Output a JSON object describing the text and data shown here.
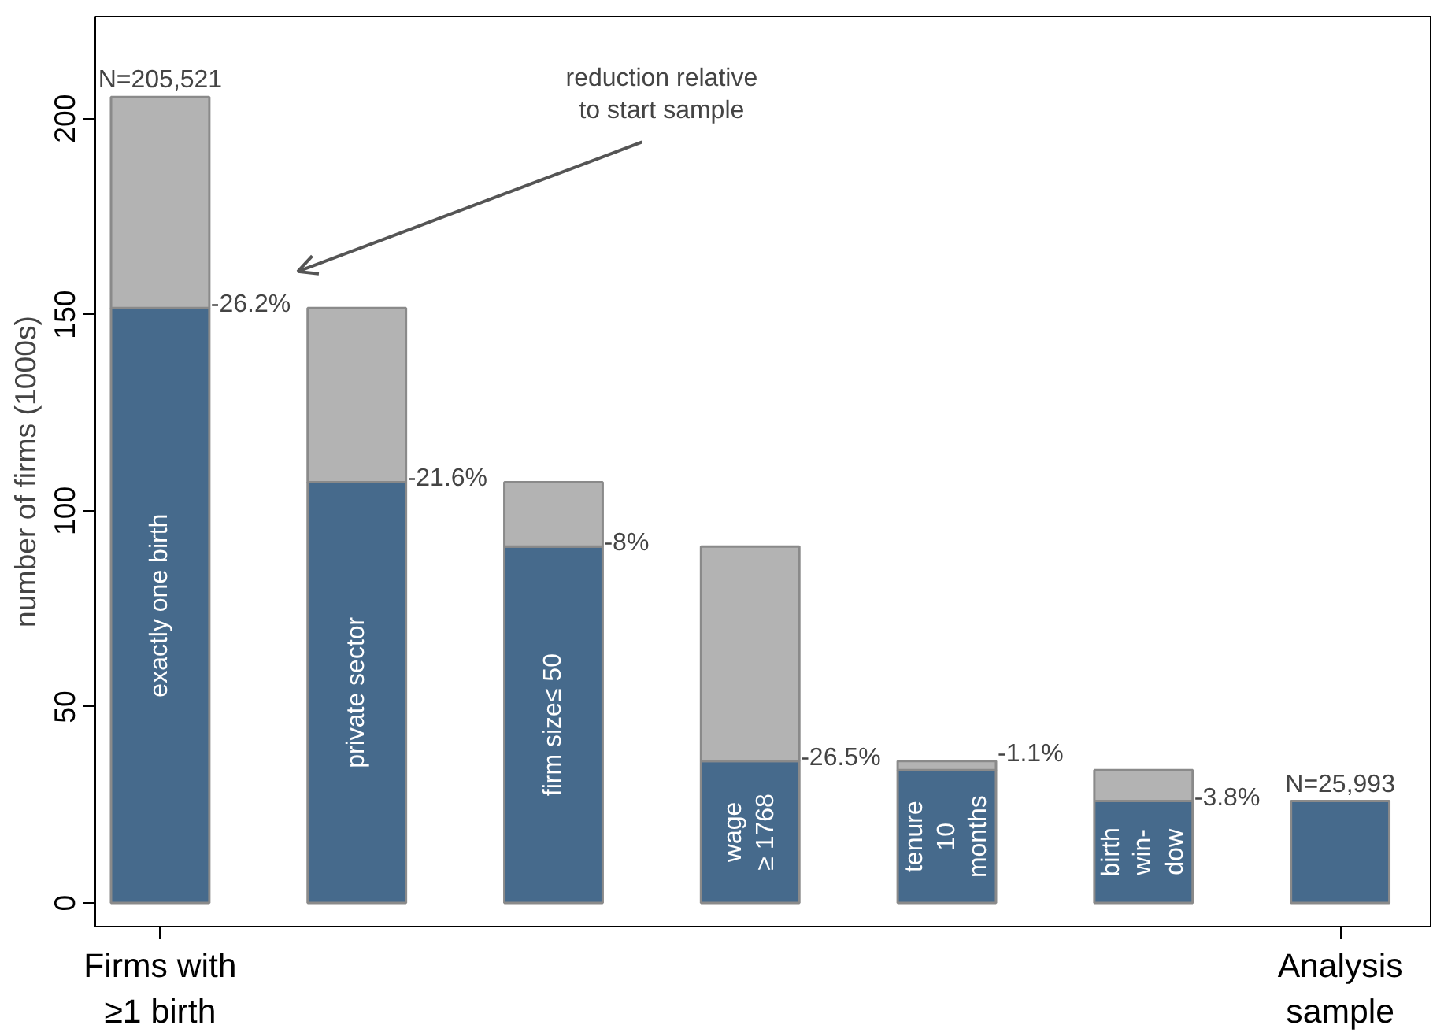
{
  "chart_data": {
    "type": "bar",
    "stacked": true,
    "ylabel": "number of firms (1000s)",
    "categories": [
      "Firms with\n≥1 birth",
      null,
      null,
      null,
      null,
      null,
      "Analysis\nsample"
    ],
    "series": [
      {
        "color": "#466a8c",
        "values": [
          151.7,
          107.3,
          90.9,
          36.2,
          33.9,
          26.0,
          26.0
        ],
        "value_labels": [
          "exactly one birth",
          "private sector",
          "firm size≤ 50",
          "wage\n≥ 1768",
          "tenure\n10\nmonths",
          "birth\nwin-\ndow",
          null
        ]
      },
      {
        "color": "#b3b3b3",
        "values": [
          53.8,
          44.4,
          16.4,
          54.7,
          2.3,
          7.9,
          null
        ]
      }
    ],
    "annotations": [
      "-26.2%",
      "-21.6%",
      "-8%",
      "-26.5%",
      "-1.1%",
      "-3.8%",
      "reduction relative\nto start sample",
      "N=205,521",
      "N=25,993"
    ],
    "ylim": [
      -6,
      226
    ],
    "yticks": [
      0,
      50,
      100,
      150,
      200
    ],
    "grid": false
  }
}
